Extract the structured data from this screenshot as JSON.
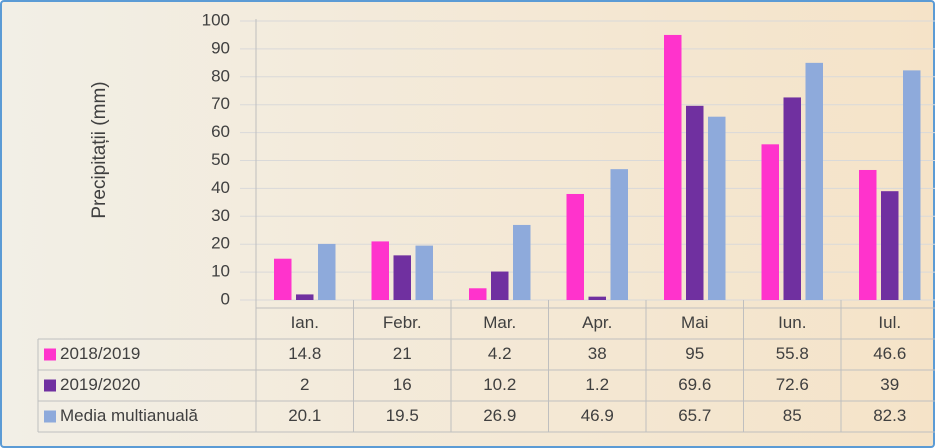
{
  "chart_data": {
    "type": "bar",
    "y_label": "Precipitații (mm)",
    "categories": [
      "Ian.",
      "Febr.",
      "Mar.",
      "Apr.",
      "Mai",
      "Iun.",
      "Iul."
    ],
    "series": [
      {
        "name": "2018/2019",
        "color": "#ff33cc",
        "values": [
          14.8,
          21,
          4.2,
          38,
          95,
          55.8,
          46.6
        ]
      },
      {
        "name": "2019/2020",
        "color": "#7030a0",
        "values": [
          2,
          16,
          10.2,
          1.2,
          69.6,
          72.6,
          39
        ]
      },
      {
        "name": "Media multianuală",
        "color": "#8eaadb",
        "values": [
          20.1,
          19.5,
          26.9,
          46.9,
          65.7,
          85,
          82.3
        ]
      }
    ],
    "ylim": [
      0,
      100
    ],
    "yticks": [
      0,
      10,
      20,
      30,
      40,
      50,
      60,
      70,
      80,
      90,
      100
    ],
    "grid": true
  }
}
